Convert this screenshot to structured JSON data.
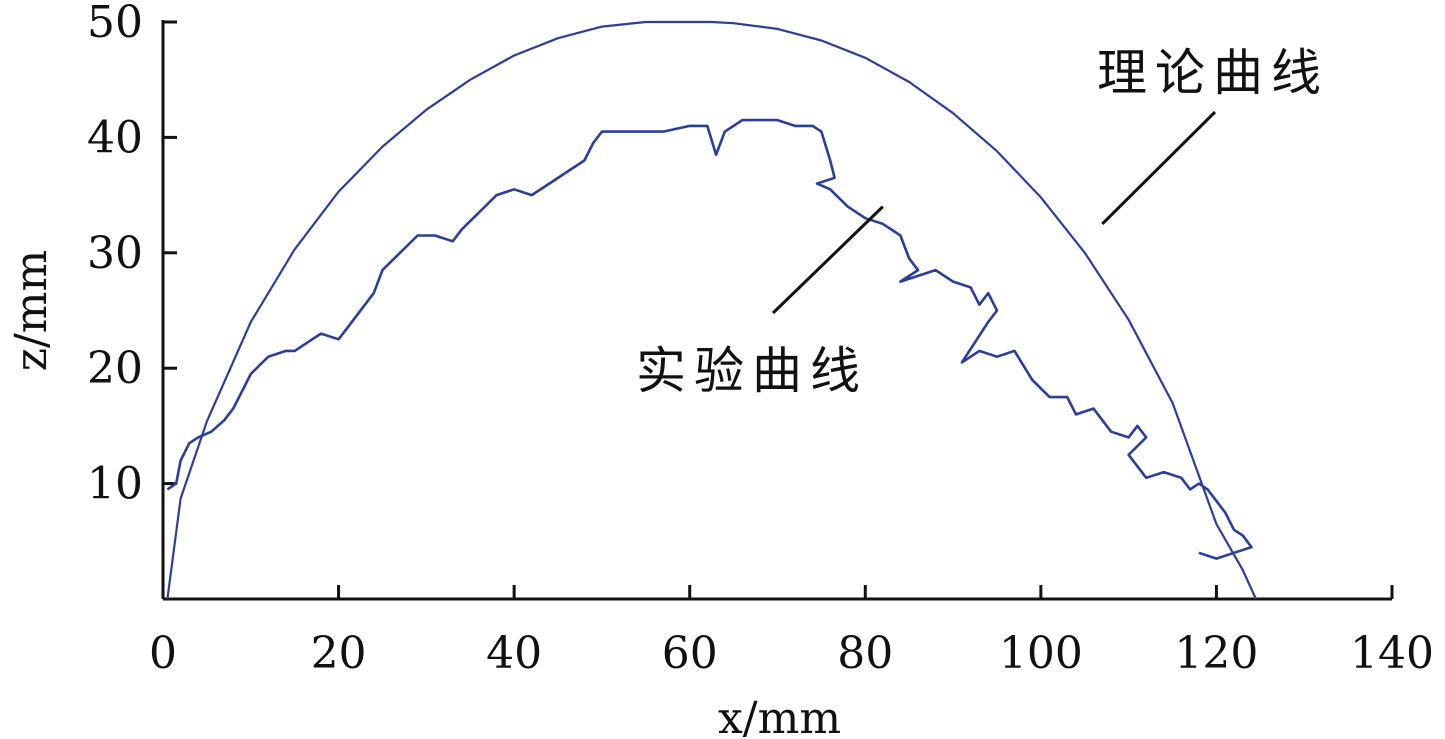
{
  "chart_data": {
    "type": "line",
    "xlabel": "x/mm",
    "ylabel": "z/mm",
    "xlim": [
      0,
      140
    ],
    "ylim": [
      0,
      50
    ],
    "xticks": [
      0,
      20,
      40,
      60,
      80,
      100,
      120,
      140
    ],
    "yticks": [
      10,
      20,
      30,
      40,
      50
    ],
    "grid": false,
    "colors": {
      "series": "#2a3f9a",
      "axis": "#111111",
      "leader": "#111111"
    },
    "annotations": [
      {
        "text": "理论曲线",
        "series": "theory",
        "points_to": [
          107,
          32.5
        ]
      },
      {
        "text": "实验曲线",
        "series": "experiment",
        "points_to": [
          82,
          34
        ]
      }
    ],
    "series": [
      {
        "id": "theory",
        "x": [
          0.5,
          2,
          5,
          10,
          15,
          20,
          25,
          30,
          35,
          40,
          45,
          50,
          55,
          60,
          62.5,
          65,
          70,
          75,
          80,
          85,
          90,
          95,
          100,
          105,
          110,
          115,
          120,
          123,
          124.5
        ],
        "y": [
          0,
          8.7,
          15.4,
          24.0,
          30.3,
          35.3,
          39.2,
          42.4,
          45.0,
          47.1,
          48.6,
          49.6,
          50.0,
          50.0,
          50.0,
          49.9,
          49.4,
          48.4,
          46.9,
          44.8,
          42.1,
          38.8,
          34.8,
          30.0,
          24.2,
          17.0,
          6.5,
          2.5,
          0
        ]
      },
      {
        "id": "experiment",
        "x": [
          0.5,
          1.5,
          2,
          3,
          4,
          5.5,
          7,
          8,
          9,
          10,
          12,
          14,
          15,
          17,
          18,
          20,
          21,
          22,
          24,
          25,
          27,
          29,
          31,
          33,
          34,
          36,
          38,
          40,
          42,
          44,
          46,
          48,
          49,
          50,
          51,
          53,
          55,
          57,
          60,
          62,
          63,
          64,
          66,
          68,
          70,
          72,
          74,
          75,
          76,
          76.5,
          74.5,
          76,
          78,
          80,
          82,
          84,
          85,
          86,
          84,
          88,
          90,
          92,
          93,
          94,
          95,
          94,
          91,
          93,
          95,
          97,
          99,
          101,
          103,
          104,
          106,
          108,
          110,
          111,
          112,
          110,
          112,
          114,
          116,
          117,
          118,
          119,
          120,
          121,
          122,
          123,
          124,
          122,
          120,
          118
        ],
        "y": [
          9.5,
          10,
          12,
          13.5,
          14,
          14.5,
          15.5,
          16.5,
          18,
          19.5,
          21,
          21.5,
          21.5,
          22.5,
          23,
          22.5,
          23.5,
          24.5,
          26.5,
          28.5,
          30,
          31.5,
          31.5,
          31,
          32,
          33.5,
          35,
          35.5,
          35,
          36,
          37,
          38,
          39.5,
          40.5,
          40.5,
          40.5,
          40.5,
          40.5,
          41,
          41,
          38.5,
          40.5,
          41.5,
          41.5,
          41.5,
          41,
          41,
          40.5,
          38,
          36.5,
          36,
          35.5,
          34,
          33,
          32.5,
          31.5,
          29.5,
          28.5,
          27.5,
          28.5,
          27.5,
          27,
          25.5,
          26.5,
          25,
          24,
          20.5,
          21.5,
          21,
          21.5,
          19,
          17.5,
          17.5,
          16,
          16.5,
          14.5,
          14,
          15,
          14,
          12.5,
          10.5,
          11,
          10.5,
          9.5,
          10,
          9.5,
          8.5,
          7.5,
          6,
          5.5,
          4.5,
          4,
          3.5,
          4
        ]
      }
    ]
  }
}
